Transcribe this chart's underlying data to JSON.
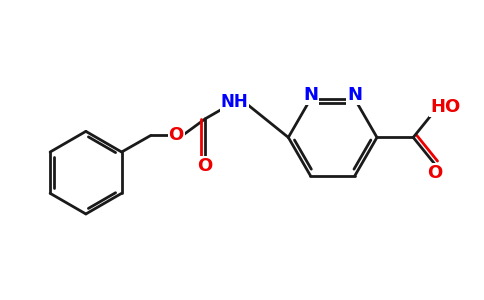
{
  "background_color": "#ffffff",
  "bond_color": "#1a1a1a",
  "nitrogen_color": "#0000ff",
  "oxygen_color": "#ee0000",
  "bond_width": 2.0,
  "figsize": [
    4.84,
    3.0
  ],
  "dpi": 100,
  "xlim": [
    0,
    9.5
  ],
  "ylim": [
    0,
    5.8
  ]
}
